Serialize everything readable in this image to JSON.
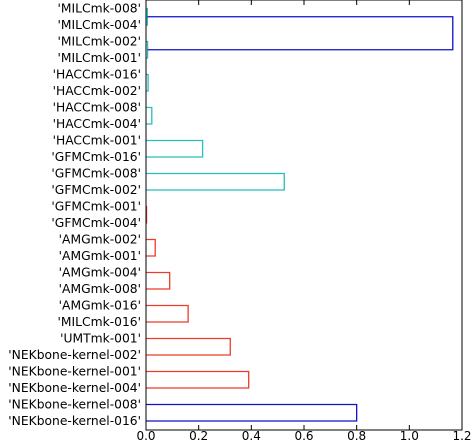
{
  "chart_data": {
    "type": "dendrogram",
    "orientation": "horizontal",
    "leaves": [
      "'MILCmk-008'",
      "'MILCmk-004'",
      "'MILCmk-002'",
      "'MILCmk-001'",
      "'HACCmk-016'",
      "'HACCmk-002'",
      "'HACCmk-008'",
      "'HACCmk-004'",
      "'HACCmk-001'",
      "'GFMCmk-016'",
      "'GFMCmk-008'",
      "'GFMCmk-002'",
      "'GFMCmk-001'",
      "'GFMCmk-004'",
      "'AMGmk-002'",
      "'AMGmk-001'",
      "'AMGmk-004'",
      "'AMGmk-008'",
      "'AMGmk-016'",
      "'MILCmk-016'",
      "'UMTmk-001'",
      "'NEKbone-kernel-002'",
      "'NEKbone-kernel-001'",
      "'NEKbone-kernel-004'",
      "'NEKbone-kernel-008'",
      "'NEKbone-kernel-016'"
    ],
    "x_ticks": [
      "0.0",
      "0.2",
      "0.4",
      "0.6",
      "0.8",
      "1.0",
      "1.2"
    ],
    "xlim": [
      0,
      1.2
    ],
    "colors": {
      "cluster_a": "#26BEBE",
      "cluster_b": "#EE3B2B",
      "link": "#1010C8",
      "axis": "#000000"
    },
    "merges": [
      {
        "a": 0,
        "b": 1,
        "height": 0.005,
        "color": "cluster_a"
      },
      {
        "a": 2,
        "b": 3,
        "height": 0.006,
        "color": "cluster_a"
      },
      {
        "a": 4,
        "b": 5,
        "height": 0.008,
        "color": "cluster_a"
      },
      {
        "a": 6,
        "b": 7,
        "height": 0.022,
        "color": "cluster_a"
      },
      {
        "a": 8,
        "b": 9,
        "height": 0.215,
        "color": "cluster_a"
      },
      {
        "a": 10,
        "b": 11,
        "height": 0.525,
        "color": "cluster_a"
      },
      {
        "a": 12,
        "b": 13,
        "height": 0.002,
        "color": "cluster_b"
      },
      {
        "a": 14,
        "b": 15,
        "height": 0.035,
        "color": "cluster_b"
      },
      {
        "a": 16,
        "b": 17,
        "height": 0.09,
        "color": "cluster_b"
      },
      {
        "a": 18,
        "b": 19,
        "height": 0.16,
        "color": "cluster_b"
      },
      {
        "a": 20,
        "b": 21,
        "height": 0.32,
        "color": "cluster_b"
      },
      {
        "a": 22,
        "b": 23,
        "height": 0.39,
        "color": "cluster_b"
      },
      {
        "a": 24,
        "b": 25,
        "height": 0.8,
        "color": "link"
      },
      {
        "a": 26,
        "b": 27,
        "height": 1.165,
        "color": "link"
      }
    ]
  }
}
